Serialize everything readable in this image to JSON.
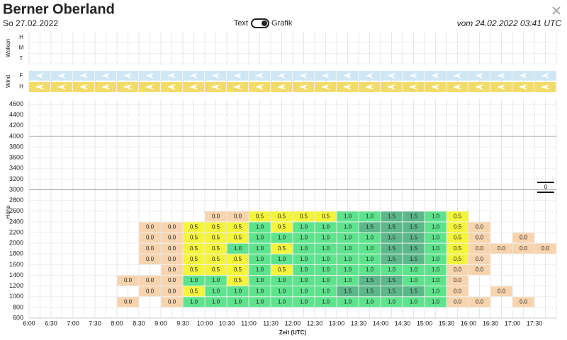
{
  "header": {
    "title": "Berner Oberland",
    "date": "So 27.02.2022",
    "toggle_left": "Text",
    "toggle_right": "Grafik",
    "issued": "vom 24.02.2022 03:41 UTC"
  },
  "panels": {
    "clouds": {
      "label": "Wolken",
      "rows": [
        "H",
        "M",
        "T"
      ]
    },
    "wind": {
      "label": "Wind",
      "rows": [
        "F",
        "H"
      ]
    }
  },
  "chart_data": {
    "type": "heatmap",
    "x_label": "Zeit (UTC)",
    "y_label": "Höhe",
    "x": [
      "6:00",
      "6:30",
      "7:00",
      "7:30",
      "8:00",
      "8:30",
      "9:00",
      "9:30",
      "10:00",
      "10:30",
      "11:00",
      "11:30",
      "12:00",
      "12:30",
      "13:00",
      "13:30",
      "14:00",
      "14:30",
      "15:00",
      "15:30",
      "16:00",
      "16:30",
      "17:00",
      "17:30"
    ],
    "ylim": [
      600,
      4700
    ],
    "yticks": [
      600,
      800,
      1000,
      1200,
      1400,
      1600,
      1800,
      2000,
      2200,
      2400,
      2600,
      2800,
      3000,
      3200,
      3400,
      3600,
      3800,
      4000,
      4200,
      4400,
      4600
    ],
    "major_grid": [
      3000,
      4000
    ],
    "rows": [
      2400,
      2200,
      2000,
      1800,
      1600,
      1400,
      1200,
      1000,
      800
    ],
    "values": [
      [
        null,
        null,
        null,
        null,
        null,
        null,
        null,
        null,
        0,
        0,
        0.5,
        0.5,
        0.5,
        0.5,
        1,
        1,
        1.5,
        1.5,
        1,
        0.5,
        null,
        null,
        null,
        null
      ],
      [
        null,
        null,
        null,
        null,
        null,
        0,
        0,
        0.5,
        0.5,
        0.5,
        1,
        0.5,
        1,
        1,
        1,
        1.5,
        1.5,
        1.5,
        1,
        0.5,
        0,
        null,
        null,
        null
      ],
      [
        null,
        null,
        null,
        null,
        null,
        0,
        0,
        0.5,
        0.5,
        0.5,
        1,
        1,
        1,
        1,
        1,
        1,
        1.5,
        1.5,
        1,
        0.5,
        0,
        null,
        0,
        null
      ],
      [
        null,
        null,
        null,
        null,
        null,
        0,
        0,
        0.5,
        0.5,
        1,
        1,
        0.5,
        1,
        1,
        1,
        1,
        1.5,
        1.5,
        1,
        0.5,
        0,
        0,
        0,
        0
      ],
      [
        null,
        null,
        null,
        null,
        null,
        0,
        0,
        0.5,
        0.5,
        0.5,
        1,
        1,
        1,
        1,
        1,
        1,
        1.5,
        1.5,
        1,
        0.5,
        0,
        null,
        null,
        null
      ],
      [
        null,
        null,
        null,
        null,
        null,
        null,
        0,
        0.5,
        0.5,
        0.5,
        1,
        0.5,
        1,
        1,
        1,
        1,
        1,
        1,
        1,
        0,
        0,
        null,
        null,
        null
      ],
      [
        null,
        null,
        null,
        null,
        0,
        0,
        0,
        1,
        1,
        0.5,
        1,
        1,
        1,
        1,
        1,
        1.5,
        1.5,
        1,
        1,
        0,
        null,
        null,
        null,
        null
      ],
      [
        null,
        null,
        null,
        null,
        null,
        0,
        0,
        0.5,
        1,
        1,
        1,
        1,
        1,
        1,
        1.5,
        1.5,
        1.5,
        1.5,
        1,
        0,
        null,
        0,
        null,
        null
      ],
      [
        null,
        null,
        null,
        null,
        0,
        null,
        0,
        1,
        1,
        1,
        1,
        1,
        1,
        1,
        1,
        1,
        1,
        1,
        1,
        0,
        0,
        null,
        0,
        null
      ]
    ],
    "value_labels": [
      [
        null,
        null,
        null,
        null,
        null,
        null,
        null,
        null,
        "0.0",
        "0.0",
        "0.5",
        "0.5",
        "0.5",
        "0.5",
        "1.0",
        "1.0",
        "1.5",
        "1.5",
        "1.0",
        "0.5",
        null,
        null,
        null,
        null
      ],
      [
        null,
        null,
        null,
        null,
        null,
        "0.0",
        "0.0",
        "0.5",
        "0.5",
        "0.5",
        "1.0",
        "0.5",
        "1.0",
        "1.0",
        "1.0",
        "1.5",
        "1.5",
        "1.5",
        "1.0",
        "0.5",
        "0.0",
        null,
        null,
        null
      ],
      [
        null,
        null,
        null,
        null,
        null,
        "0.0",
        "0.0",
        "0.5",
        "0.5",
        "0.5",
        "1.0",
        "1.0",
        "1.0",
        "1.0",
        "1.0",
        "1.0",
        "1.5",
        "1.5",
        "1.0",
        "0.5",
        "0.0",
        null,
        "0.0",
        null
      ],
      [
        null,
        null,
        null,
        null,
        null,
        "0.0",
        "0.0",
        "0.5",
        "0.5",
        "1.0",
        "1.0",
        "0.5",
        "1.0",
        "1.0",
        "1.0",
        "1.0",
        "1.5",
        "1.5",
        "1.0",
        "0.5",
        "0.0",
        "0.0",
        "0.0",
        "0.0"
      ],
      [
        null,
        null,
        null,
        null,
        null,
        "0.0",
        "0.0",
        "0.5",
        "0.5",
        "0.5",
        "1.0",
        "1.0",
        "1.0",
        "1.0",
        "1.0",
        "1.0",
        "1.5",
        "1.5",
        "1.0",
        "0.5",
        "0.0",
        null,
        null,
        null
      ],
      [
        null,
        null,
        null,
        null,
        null,
        null,
        "0.0",
        "0.5",
        "0.5",
        "0.5",
        "1.0",
        "0.5",
        "1.0",
        "1.0",
        "1.0",
        "1.0",
        "1.0",
        "1.0",
        "1.0",
        "0.0",
        "0.0",
        null,
        null,
        null
      ],
      [
        null,
        null,
        null,
        null,
        "0.0",
        "0.0",
        "0.0",
        "1.0",
        "1.0",
        "0.5",
        "1.0",
        "1.0",
        "1.0",
        "1.0",
        "1.0",
        "1.5",
        "1.5",
        "1.0",
        "1.0",
        "0.0",
        null,
        null,
        null,
        null
      ],
      [
        null,
        null,
        null,
        null,
        null,
        "0.0",
        "0.0",
        "0.5",
        "1.0",
        "1.0",
        "1.0",
        "1.0",
        "1.0",
        "1.0",
        "1.5",
        "1.5",
        "1.5",
        "1.5",
        "1.0",
        "0.0",
        null,
        "0.0",
        null,
        null
      ],
      [
        null,
        null,
        null,
        null,
        "0.0",
        null,
        "0.0",
        "1.0",
        "1.0",
        "1.0",
        "1.0",
        "1.0",
        "1.0",
        "1.0",
        "1.0",
        "1.0",
        "1.0",
        "1.0",
        "1.0",
        "0.0",
        "0.0",
        null,
        "0.0",
        null
      ]
    ],
    "color_levels": [
      0,
      0.5,
      1,
      1.5
    ],
    "colors": [
      "#f8d4ae",
      "#f4f43c",
      "#5de38c",
      "#5cb88a"
    ],
    "annotation": "0"
  }
}
